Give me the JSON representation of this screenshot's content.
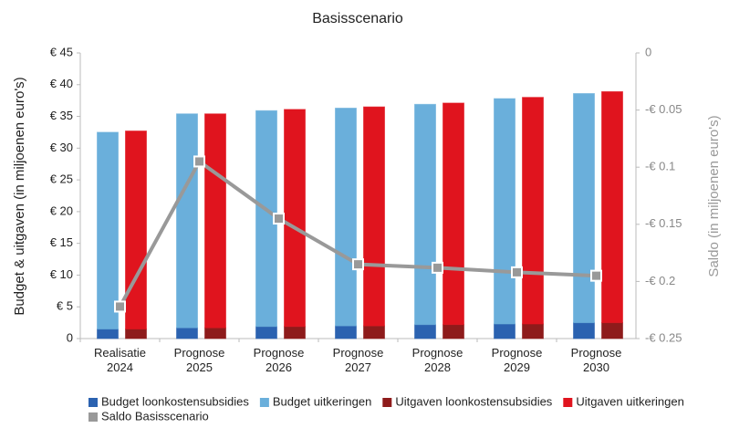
{
  "chart_data": {
    "type": "bar",
    "title": "Basisscenario",
    "y_label": "Budget & uitgaven  (in miljoenen euro's)",
    "y2_label": "Saldo  (in miljoenen euro's)",
    "categories": [
      "Realisatie 2024",
      "Prognose 2025",
      "Prognose 2026",
      "Prognose 2027",
      "Prognose 2028",
      "Prognose 2029",
      "Prognose 2030"
    ],
    "series": [
      {
        "name": "Budget loonkostensubsidies",
        "color": "#2b62b0",
        "stack": 0,
        "values": [
          1.5,
          1.7,
          1.9,
          2.0,
          2.2,
          2.3,
          2.5
        ]
      },
      {
        "name": "Budget uitkeringen",
        "color": "#6aafdb",
        "stack": 0,
        "values": [
          31.0,
          33.7,
          34.0,
          34.3,
          34.7,
          35.5,
          36.1
        ]
      },
      {
        "name": "Uitgaven loonkostensubsidies",
        "color": "#8e1b1b",
        "stack": 1,
        "values": [
          1.5,
          1.7,
          1.9,
          2.0,
          2.2,
          2.3,
          2.5
        ]
      },
      {
        "name": "Uitgaven uitkeringen",
        "color": "#e0141e",
        "stack": 1,
        "values": [
          31.2,
          33.7,
          34.2,
          34.5,
          34.9,
          35.7,
          36.4
        ]
      },
      {
        "name": "Saldo Basisscenario",
        "color": "#999999",
        "type": "line",
        "axis": "y2",
        "values": [
          -0.222,
          -0.095,
          -0.145,
          -0.185,
          -0.188,
          -0.192,
          -0.195
        ]
      }
    ],
    "ylim": [
      0,
      45
    ],
    "yticks": [
      0,
      {
        "value": 5,
        "label": "€ 5"
      },
      {
        "value": 10,
        "label": "€ 10"
      },
      {
        "value": 15,
        "label": "€ 15"
      },
      {
        "value": 20,
        "label": "€ 20"
      },
      {
        "value": 25,
        "label": "€ 25"
      },
      {
        "value": 30,
        "label": "€ 30"
      },
      {
        "value": 35,
        "label": "€ 35"
      },
      {
        "value": 40,
        "label": "€ 40"
      },
      {
        "value": 45,
        "label": "€ 45"
      }
    ],
    "y2lim": [
      -0.25,
      0
    ],
    "y2ticks": [
      {
        "value": -0.25,
        "label": "-€ 0.25"
      },
      {
        "value": -0.2,
        "label": "-€ 0.2"
      },
      {
        "value": -0.15,
        "label": "-€ 0.15"
      },
      {
        "value": -0.1,
        "label": "-€ 0.1"
      },
      {
        "value": -0.05,
        "label": "-€ 0.05"
      },
      0
    ],
    "legend": "bottom"
  }
}
